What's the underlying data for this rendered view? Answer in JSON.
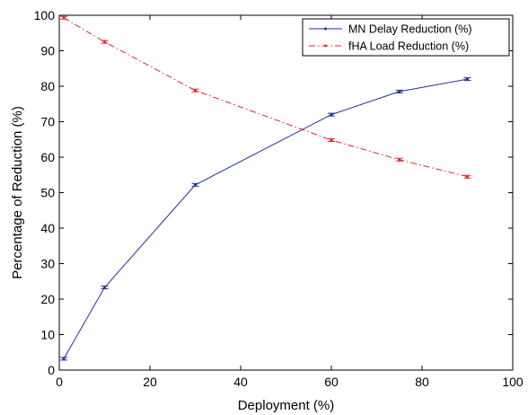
{
  "chart_data": {
    "type": "line",
    "xlabel": "Deployment (%)",
    "ylabel": "Percentage of Reduction (%)",
    "xlim": [
      0,
      100
    ],
    "ylim": [
      0,
      100
    ],
    "xticks": [
      0,
      20,
      40,
      60,
      80,
      100
    ],
    "yticks": [
      0,
      10,
      20,
      30,
      40,
      50,
      60,
      70,
      80,
      90,
      100
    ],
    "grid": false,
    "legend_position": "top-right",
    "series": [
      {
        "name": "MN Delay Reduction (%)",
        "color": "#1f2fa0",
        "line_style": "solid",
        "marker": "dot",
        "x": [
          1,
          10,
          30,
          60,
          75,
          90
        ],
        "y": [
          3.2,
          23.3,
          52.2,
          72.0,
          78.5,
          82.0
        ]
      },
      {
        "name": "fHA Load Reduction (%)",
        "color": "#e8232a",
        "line_style": "dash-dot",
        "marker": "dot",
        "x": [
          1,
          10,
          30,
          60,
          75,
          90
        ],
        "y": [
          99.3,
          92.5,
          78.8,
          64.8,
          59.3,
          54.5
        ]
      }
    ]
  }
}
